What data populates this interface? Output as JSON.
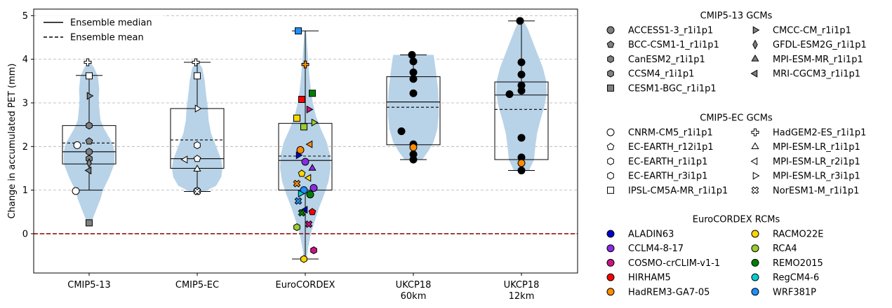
{
  "chart_data": {
    "type": "violin-box",
    "title": "",
    "xlabel": "",
    "ylabel": "Change in accumulated PET (mm)",
    "ylim": [
      -0.9,
      5.15
    ],
    "yticks": [
      0,
      1,
      2,
      3,
      4,
      5
    ],
    "grid": "horizontal-dashed",
    "reference_line": {
      "y": 0,
      "style": "dashed",
      "color": "#8b0000"
    },
    "categories": [
      {
        "label": "CMIP5-13",
        "label2": ""
      },
      {
        "label": "CMIP5-EC",
        "label2": ""
      },
      {
        "label": "EuroCORDEX",
        "label2": ""
      },
      {
        "label": "UKCP18",
        "label2": "60km"
      },
      {
        "label": "UKCP18",
        "label2": "12km"
      }
    ],
    "stats_legend": [
      {
        "label": "Ensemble median",
        "style": "solid"
      },
      {
        "label": "Ensemble mean",
        "style": "dashed"
      }
    ],
    "groups": [
      {
        "category": "CMIP5-13",
        "violin": {
          "min": 0.25,
          "max": 3.93,
          "profile": [
            [
              0.25,
              0.08
            ],
            [
              0.5,
              0.25
            ],
            [
              0.8,
              0.45
            ],
            [
              1.0,
              0.55
            ],
            [
              1.3,
              0.8
            ],
            [
              1.6,
              1.0
            ],
            [
              1.9,
              1.0
            ],
            [
              2.1,
              0.9
            ],
            [
              2.4,
              0.6
            ],
            [
              2.6,
              0.45
            ],
            [
              2.9,
              0.4
            ],
            [
              3.1,
              0.38
            ],
            [
              3.3,
              0.4
            ],
            [
              3.6,
              0.35
            ],
            [
              3.8,
              0.2
            ],
            [
              3.93,
              0.05
            ]
          ]
        },
        "box": {
          "q1": 1.6,
          "median": 1.88,
          "mean": 2.08,
          "q3": 2.48,
          "whisker_low": 1.0,
          "whisker_high": 3.63
        },
        "points": [
          {
            "y": 3.93,
            "marker": "plus",
            "color": "#ffffff"
          },
          {
            "y": 3.62,
            "marker": "square",
            "color": "#ffffff"
          },
          {
            "y": 3.16,
            "marker": "tri-right",
            "color": "#808080"
          },
          {
            "y": 2.48,
            "marker": "hexagon",
            "color": "#808080"
          },
          {
            "y": 2.12,
            "marker": "pentagon",
            "color": "#808080"
          },
          {
            "y": 2.03,
            "marker": "circle",
            "color": "#ffffff"
          },
          {
            "y": 1.88,
            "marker": "hexagon",
            "color": "#808080"
          },
          {
            "y": 1.72,
            "marker": "hexagon",
            "color": "#808080"
          },
          {
            "y": 1.62,
            "marker": "diamond",
            "color": "#808080"
          },
          {
            "y": 1.45,
            "marker": "tri-left",
            "color": "#808080"
          },
          {
            "y": 0.98,
            "marker": "circle",
            "color": "#ffffff"
          },
          {
            "y": 0.25,
            "marker": "square",
            "color": "#808080"
          }
        ]
      },
      {
        "category": "CMIP5-EC",
        "violin": {
          "min": 0.97,
          "max": 3.93,
          "profile": [
            [
              0.97,
              0.3
            ],
            [
              1.1,
              0.75
            ],
            [
              1.3,
              0.95
            ],
            [
              1.5,
              1.0
            ],
            [
              1.7,
              0.95
            ],
            [
              2.0,
              0.75
            ],
            [
              2.3,
              0.55
            ],
            [
              2.6,
              0.45
            ],
            [
              2.9,
              0.42
            ],
            [
              3.2,
              0.35
            ],
            [
              3.5,
              0.3
            ],
            [
              3.8,
              0.2
            ],
            [
              3.93,
              0.05
            ]
          ]
        },
        "box": {
          "q1": 1.5,
          "median": 1.72,
          "mean": 2.15,
          "q3": 2.87,
          "whisker_low": 0.97,
          "whisker_high": 3.93
        },
        "points": [
          {
            "y": 3.93,
            "marker": "plus",
            "color": "#ffffff"
          },
          {
            "y": 3.62,
            "marker": "square",
            "color": "#ffffff"
          },
          {
            "y": 2.87,
            "marker": "tri-right",
            "color": "#ffffff"
          },
          {
            "y": 2.03,
            "marker": "hexagon",
            "color": "#ffffff"
          },
          {
            "y": 1.72,
            "marker": "pentagon",
            "color": "#ffffff"
          },
          {
            "y": 1.7,
            "marker": "tri-left",
            "color": "#ffffff"
          },
          {
            "y": 1.48,
            "marker": "triangle",
            "color": "#ffffff"
          },
          {
            "y": 0.98,
            "marker": "circle",
            "color": "#ffffff"
          },
          {
            "y": 0.97,
            "marker": "x-thick",
            "color": "#ffffff"
          }
        ]
      },
      {
        "category": "EuroCORDEX",
        "violin": {
          "min": -0.58,
          "max": 4.65,
          "profile": [
            [
              -0.58,
              0.05
            ],
            [
              -0.3,
              0.12
            ],
            [
              0.0,
              0.22
            ],
            [
              0.3,
              0.38
            ],
            [
              0.6,
              0.55
            ],
            [
              0.9,
              0.75
            ],
            [
              1.2,
              0.92
            ],
            [
              1.5,
              1.0
            ],
            [
              1.8,
              0.98
            ],
            [
              2.1,
              0.85
            ],
            [
              2.4,
              0.62
            ],
            [
              2.7,
              0.42
            ],
            [
              3.0,
              0.3
            ],
            [
              3.3,
              0.22
            ],
            [
              3.7,
              0.15
            ],
            [
              4.1,
              0.1
            ],
            [
              4.65,
              0.03
            ]
          ]
        },
        "box": {
          "q1": 1.0,
          "median": 1.68,
          "mean": 1.78,
          "q3": 2.53,
          "whisker_low": -0.58,
          "whisker_high": 4.65
        },
        "points": [
          {
            "y": 4.65,
            "marker": "square",
            "color": "#1e90ff"
          },
          {
            "y": 3.88,
            "marker": "plus",
            "color": "#ff8c00"
          },
          {
            "y": 3.22,
            "marker": "square",
            "color": "#008000"
          },
          {
            "y": 3.08,
            "marker": "square",
            "color": "#ff0000"
          },
          {
            "y": 2.85,
            "marker": "tri-right",
            "color": "#c71585"
          },
          {
            "y": 2.65,
            "marker": "square",
            "color": "#ffd700"
          },
          {
            "y": 2.55,
            "marker": "tri-right",
            "color": "#9acd32"
          },
          {
            "y": 2.45,
            "marker": "square",
            "color": "#9acd32"
          },
          {
            "y": 2.05,
            "marker": "tri-left",
            "color": "#ff8c00"
          },
          {
            "y": 1.92,
            "marker": "circle",
            "color": "#ff8c00"
          },
          {
            "y": 1.8,
            "marker": "tri-right",
            "color": "#0000cd"
          },
          {
            "y": 1.65,
            "marker": "circle",
            "color": "#8a2be2"
          },
          {
            "y": 1.5,
            "marker": "triangle",
            "color": "#8a2be2"
          },
          {
            "y": 1.38,
            "marker": "pentagon",
            "color": "#ffd700"
          },
          {
            "y": 1.28,
            "marker": "tri-left",
            "color": "#ffd700"
          },
          {
            "y": 1.15,
            "marker": "x-thick",
            "color": "#ff8c00"
          },
          {
            "y": 1.05,
            "marker": "circle",
            "color": "#8a2be2"
          },
          {
            "y": 1.0,
            "marker": "circle",
            "color": "#1e90ff"
          },
          {
            "y": 0.9,
            "marker": "circle",
            "color": "#008000"
          },
          {
            "y": 0.92,
            "marker": "tri-right",
            "color": "#00ced1"
          },
          {
            "y": 0.75,
            "marker": "x-thick",
            "color": "#1e90ff"
          },
          {
            "y": 0.55,
            "marker": "tri-left",
            "color": "#0000cd"
          },
          {
            "y": 0.5,
            "marker": "pentagon",
            "color": "#ff0000"
          },
          {
            "y": 0.48,
            "marker": "x-thick",
            "color": "#008000"
          },
          {
            "y": 0.22,
            "marker": "x-thick",
            "color": "#c71585"
          },
          {
            "y": 0.15,
            "marker": "hexagon",
            "color": "#9acd32"
          },
          {
            "y": -0.38,
            "marker": "hexagon",
            "color": "#c71585"
          },
          {
            "y": -0.58,
            "marker": "hexagon",
            "color": "#ffd700"
          }
        ]
      },
      {
        "category": "UKCP18 60km",
        "violin": {
          "min": 1.7,
          "max": 4.1,
          "profile": [
            [
              1.7,
              0.35
            ],
            [
              1.9,
              0.6
            ],
            [
              2.1,
              0.8
            ],
            [
              2.4,
              0.95
            ],
            [
              2.7,
              1.0
            ],
            [
              3.0,
              1.0
            ],
            [
              3.3,
              0.98
            ],
            [
              3.6,
              0.92
            ],
            [
              3.9,
              0.85
            ],
            [
              4.1,
              0.8
            ]
          ]
        },
        "box": {
          "q1": 2.04,
          "median": 3.02,
          "mean": 2.9,
          "q3": 3.6,
          "whisker_low": 1.7,
          "whisker_high": 4.1
        },
        "points": [
          {
            "y": 4.1,
            "marker": "circle",
            "color": "#000000"
          },
          {
            "y": 3.95,
            "marker": "circle",
            "color": "#000000"
          },
          {
            "y": 3.7,
            "marker": "circle",
            "color": "#000000"
          },
          {
            "y": 3.55,
            "marker": "circle",
            "color": "#000000"
          },
          {
            "y": 3.22,
            "marker": "circle",
            "color": "#000000"
          },
          {
            "y": 2.35,
            "marker": "circle",
            "color": "#000000"
          },
          {
            "y": 2.05,
            "marker": "circle",
            "color": "#000000"
          },
          {
            "y": 1.98,
            "marker": "circle",
            "color": "#ff8c00"
          },
          {
            "y": 1.82,
            "marker": "circle",
            "color": "#000000"
          },
          {
            "y": 1.7,
            "marker": "circle",
            "color": "#000000"
          }
        ]
      },
      {
        "category": "UKCP18 12km",
        "violin": {
          "min": 1.45,
          "max": 4.88,
          "profile": [
            [
              1.45,
              0.3
            ],
            [
              1.7,
              0.5
            ],
            [
              2.0,
              0.55
            ],
            [
              2.3,
              0.62
            ],
            [
              2.6,
              0.75
            ],
            [
              2.9,
              0.9
            ],
            [
              3.2,
              1.0
            ],
            [
              3.5,
              0.98
            ],
            [
              3.8,
              0.85
            ],
            [
              4.1,
              0.65
            ],
            [
              4.4,
              0.45
            ],
            [
              4.7,
              0.25
            ],
            [
              4.88,
              0.08
            ]
          ]
        },
        "box": {
          "q1": 1.7,
          "median": 3.18,
          "mean": 2.85,
          "q3": 3.48,
          "whisker_low": 1.45,
          "whisker_high": 4.88
        },
        "points": [
          {
            "y": 4.88,
            "marker": "circle",
            "color": "#000000"
          },
          {
            "y": 3.93,
            "marker": "circle",
            "color": "#000000"
          },
          {
            "y": 3.65,
            "marker": "circle",
            "color": "#000000"
          },
          {
            "y": 3.4,
            "marker": "circle",
            "color": "#000000"
          },
          {
            "y": 3.28,
            "marker": "circle",
            "color": "#000000"
          },
          {
            "y": 3.2,
            "marker": "circle",
            "color": "#000000"
          },
          {
            "y": 2.2,
            "marker": "circle",
            "color": "#000000"
          },
          {
            "y": 1.75,
            "marker": "circle",
            "color": "#000000"
          },
          {
            "y": 1.62,
            "marker": "circle",
            "color": "#ff8c00"
          },
          {
            "y": 1.45,
            "marker": "circle",
            "color": "#000000"
          }
        ]
      }
    ],
    "legend": [
      {
        "title": "CMIP5-13 GCMs",
        "entries": [
          {
            "label": "ACCESS1-3_r1i1p1",
            "marker": "circle",
            "color": "#808080"
          },
          {
            "label": "BCC-CSM1-1_r1i1p1",
            "marker": "pentagon",
            "color": "#808080"
          },
          {
            "label": "CanESM2_r1i1p1",
            "marker": "hexagon",
            "color": "#808080"
          },
          {
            "label": "CCSM4_r1i1p1",
            "marker": "hexagon",
            "color": "#808080"
          },
          {
            "label": "CESM1-BGC_r1i1p1",
            "marker": "square",
            "color": "#808080"
          },
          {
            "label": "CMCC-CM_r1i1p1",
            "marker": "tri-right",
            "color": "#808080"
          },
          {
            "label": "GFDL-ESM2G_r1i1p1",
            "marker": "diamond",
            "color": "#808080"
          },
          {
            "label": "MPI-ESM-MR_r1i1p1",
            "marker": "triangle",
            "color": "#808080"
          },
          {
            "label": "MRI-CGCM3_r1i1p1",
            "marker": "tri-left",
            "color": "#808080"
          }
        ]
      },
      {
        "title": "CMIP5-EC GCMs",
        "entries": [
          {
            "label": "CNRM-CM5_r1i1p1",
            "marker": "circle",
            "color": "#ffffff"
          },
          {
            "label": "EC-EARTH_r12i1p1",
            "marker": "pentagon",
            "color": "#ffffff"
          },
          {
            "label": "EC-EARTH_r1i1p1",
            "marker": "hexagon",
            "color": "#ffffff"
          },
          {
            "label": "EC-EARTH_r3i1p1",
            "marker": "hexagon",
            "color": "#ffffff"
          },
          {
            "label": "IPSL-CM5A-MR_r1i1p1",
            "marker": "square",
            "color": "#ffffff"
          },
          {
            "label": "HadGEM2-ES_r1i1p1",
            "marker": "plus",
            "color": "#ffffff"
          },
          {
            "label": "MPI-ESM-LR_r1i1p1",
            "marker": "triangle",
            "color": "#ffffff"
          },
          {
            "label": "MPI-ESM-LR_r2i1p1",
            "marker": "tri-left",
            "color": "#ffffff"
          },
          {
            "label": "MPI-ESM-LR_r3i1p1",
            "marker": "tri-right",
            "color": "#ffffff"
          },
          {
            "label": "NorESM1-M_r1i1p1",
            "marker": "x-thick",
            "color": "#ffffff"
          }
        ]
      },
      {
        "title": "EuroCORDEX RCMs",
        "entries": [
          {
            "label": "ALADIN63",
            "marker": "circle",
            "color": "#0000cd"
          },
          {
            "label": "CCLM4-8-17",
            "marker": "circle",
            "color": "#8a2be2"
          },
          {
            "label": "COSMO-crCLIM-v1-1",
            "marker": "circle",
            "color": "#c71585"
          },
          {
            "label": "HIRHAM5",
            "marker": "circle",
            "color": "#ff0000"
          },
          {
            "label": "HadREM3-GA7-05",
            "marker": "circle",
            "color": "#ff8c00"
          },
          {
            "label": "RACMO22E",
            "marker": "circle",
            "color": "#ffd700"
          },
          {
            "label": "RCA4",
            "marker": "circle",
            "color": "#9acd32"
          },
          {
            "label": "REMO2015",
            "marker": "circle",
            "color": "#008000"
          },
          {
            "label": "RegCM4-6",
            "marker": "circle",
            "color": "#00ced1"
          },
          {
            "label": "WRF381P",
            "marker": "circle",
            "color": "#1e90ff"
          }
        ]
      }
    ],
    "colors": {
      "violin": "#b8d3e8",
      "grid": "#b0b0b0",
      "zero_line": "#8b0000"
    }
  }
}
